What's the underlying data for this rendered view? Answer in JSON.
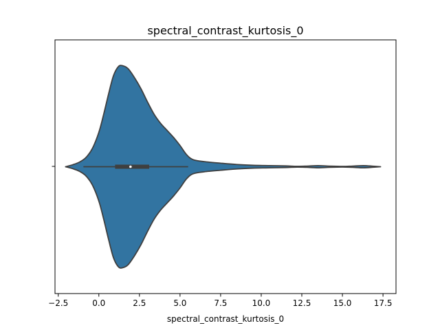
{
  "chart_data": {
    "type": "violin",
    "title": "spectral_contrast_kurtosis_0",
    "xlabel": "spectral_contrast_kurtosis_0",
    "ylabel": "",
    "xlim": [
      -2.7,
      18.3
    ],
    "xticks": [
      -2.5,
      0.0,
      2.5,
      5.0,
      7.5,
      10.0,
      12.5,
      15.0,
      17.5
    ],
    "xtick_labels": [
      "−2.5",
      "0.0",
      "2.5",
      "5.0",
      "7.5",
      "10.0",
      "12.5",
      "15.0",
      "17.5"
    ],
    "grid": false,
    "fill_color": "#3274a1",
    "line_color": "#3f3f3f",
    "density": [
      [
        -2.05,
        0.0
      ],
      [
        -1.6,
        0.02
      ],
      [
        -1.2,
        0.045
      ],
      [
        -0.8,
        0.09
      ],
      [
        -0.4,
        0.18
      ],
      [
        0.0,
        0.34
      ],
      [
        0.3,
        0.52
      ],
      [
        0.6,
        0.72
      ],
      [
        0.9,
        0.9
      ],
      [
        1.2,
        0.99
      ],
      [
        1.45,
        1.0
      ],
      [
        1.8,
        0.97
      ],
      [
        2.2,
        0.88
      ],
      [
        2.6,
        0.77
      ],
      [
        3.0,
        0.64
      ],
      [
        3.4,
        0.52
      ],
      [
        3.8,
        0.43
      ],
      [
        4.2,
        0.36
      ],
      [
        4.6,
        0.29
      ],
      [
        5.0,
        0.21
      ],
      [
        5.4,
        0.12
      ],
      [
        5.8,
        0.07
      ],
      [
        6.5,
        0.05
      ],
      [
        7.5,
        0.035
      ],
      [
        8.5,
        0.022
      ],
      [
        9.5,
        0.014
      ],
      [
        10.5,
        0.011
      ],
      [
        11.5,
        0.008
      ],
      [
        12.2,
        0.004
      ],
      [
        12.8,
        0.006
      ],
      [
        13.5,
        0.011
      ],
      [
        14.2,
        0.006
      ],
      [
        15.0,
        0.003
      ],
      [
        15.6,
        0.006
      ],
      [
        16.3,
        0.011
      ],
      [
        16.9,
        0.005
      ],
      [
        17.35,
        0.0
      ]
    ],
    "box": {
      "whisker_low": -0.95,
      "q1": 1.0,
      "median": 1.95,
      "q3": 3.1,
      "whisker_high": 5.5
    }
  }
}
